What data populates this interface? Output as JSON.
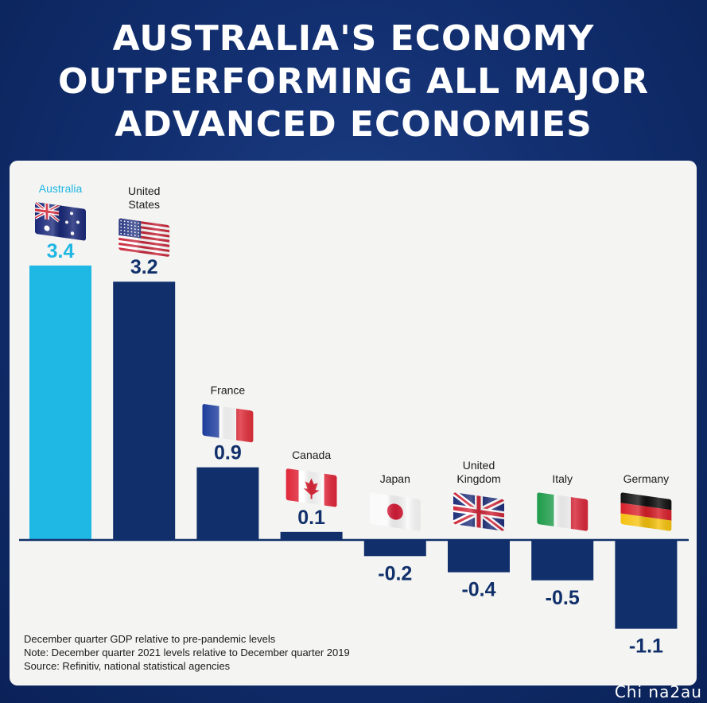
{
  "title_lines": [
    "AUSTRALIA'S ECONOMY",
    "OUTPERFORMING ALL MAJOR",
    "ADVANCED ECONOMIES"
  ],
  "notes": [
    "December quarter GDP relative to pre-pandemic levels",
    "Note: December quarter 2021 levels relative to December quarter 2019",
    "Source: Refinitiv, national statistical agencies"
  ],
  "watermark": "Chi na2au",
  "colors": {
    "australia_bar": "#1fb7e3",
    "bar": "#11306b",
    "label": "#11306b",
    "australia_label": "#1fb7e3",
    "baseline": "#11306b"
  },
  "chart_data": {
    "type": "bar",
    "categories": [
      "Australia",
      "United States",
      "France",
      "Canada",
      "Japan",
      "United Kingdom",
      "Italy",
      "Germany"
    ],
    "category_lines": [
      [
        "Australia"
      ],
      [
        "United",
        "States"
      ],
      [
        "France"
      ],
      [
        "Canada"
      ],
      [
        "Japan"
      ],
      [
        "United",
        "Kingdom"
      ],
      [
        "Italy"
      ],
      [
        "Germany"
      ]
    ],
    "values": [
      3.4,
      3.2,
      0.9,
      0.1,
      -0.2,
      -0.4,
      -0.5,
      -1.1
    ],
    "value_labels": [
      "3.4",
      "3.2",
      "0.9",
      "0.1",
      "-0.2",
      "-0.4",
      "-0.5",
      "-1.1"
    ],
    "flags": [
      "australia-flag-icon",
      "us-flag-icon",
      "france-flag-icon",
      "canada-flag-icon",
      "japan-flag-icon",
      "uk-flag-icon",
      "italy-flag-icon",
      "germany-flag-icon"
    ],
    "highlight_index": 0,
    "ylim": [
      -1.1,
      3.4
    ],
    "grid": false,
    "legend": "none"
  }
}
